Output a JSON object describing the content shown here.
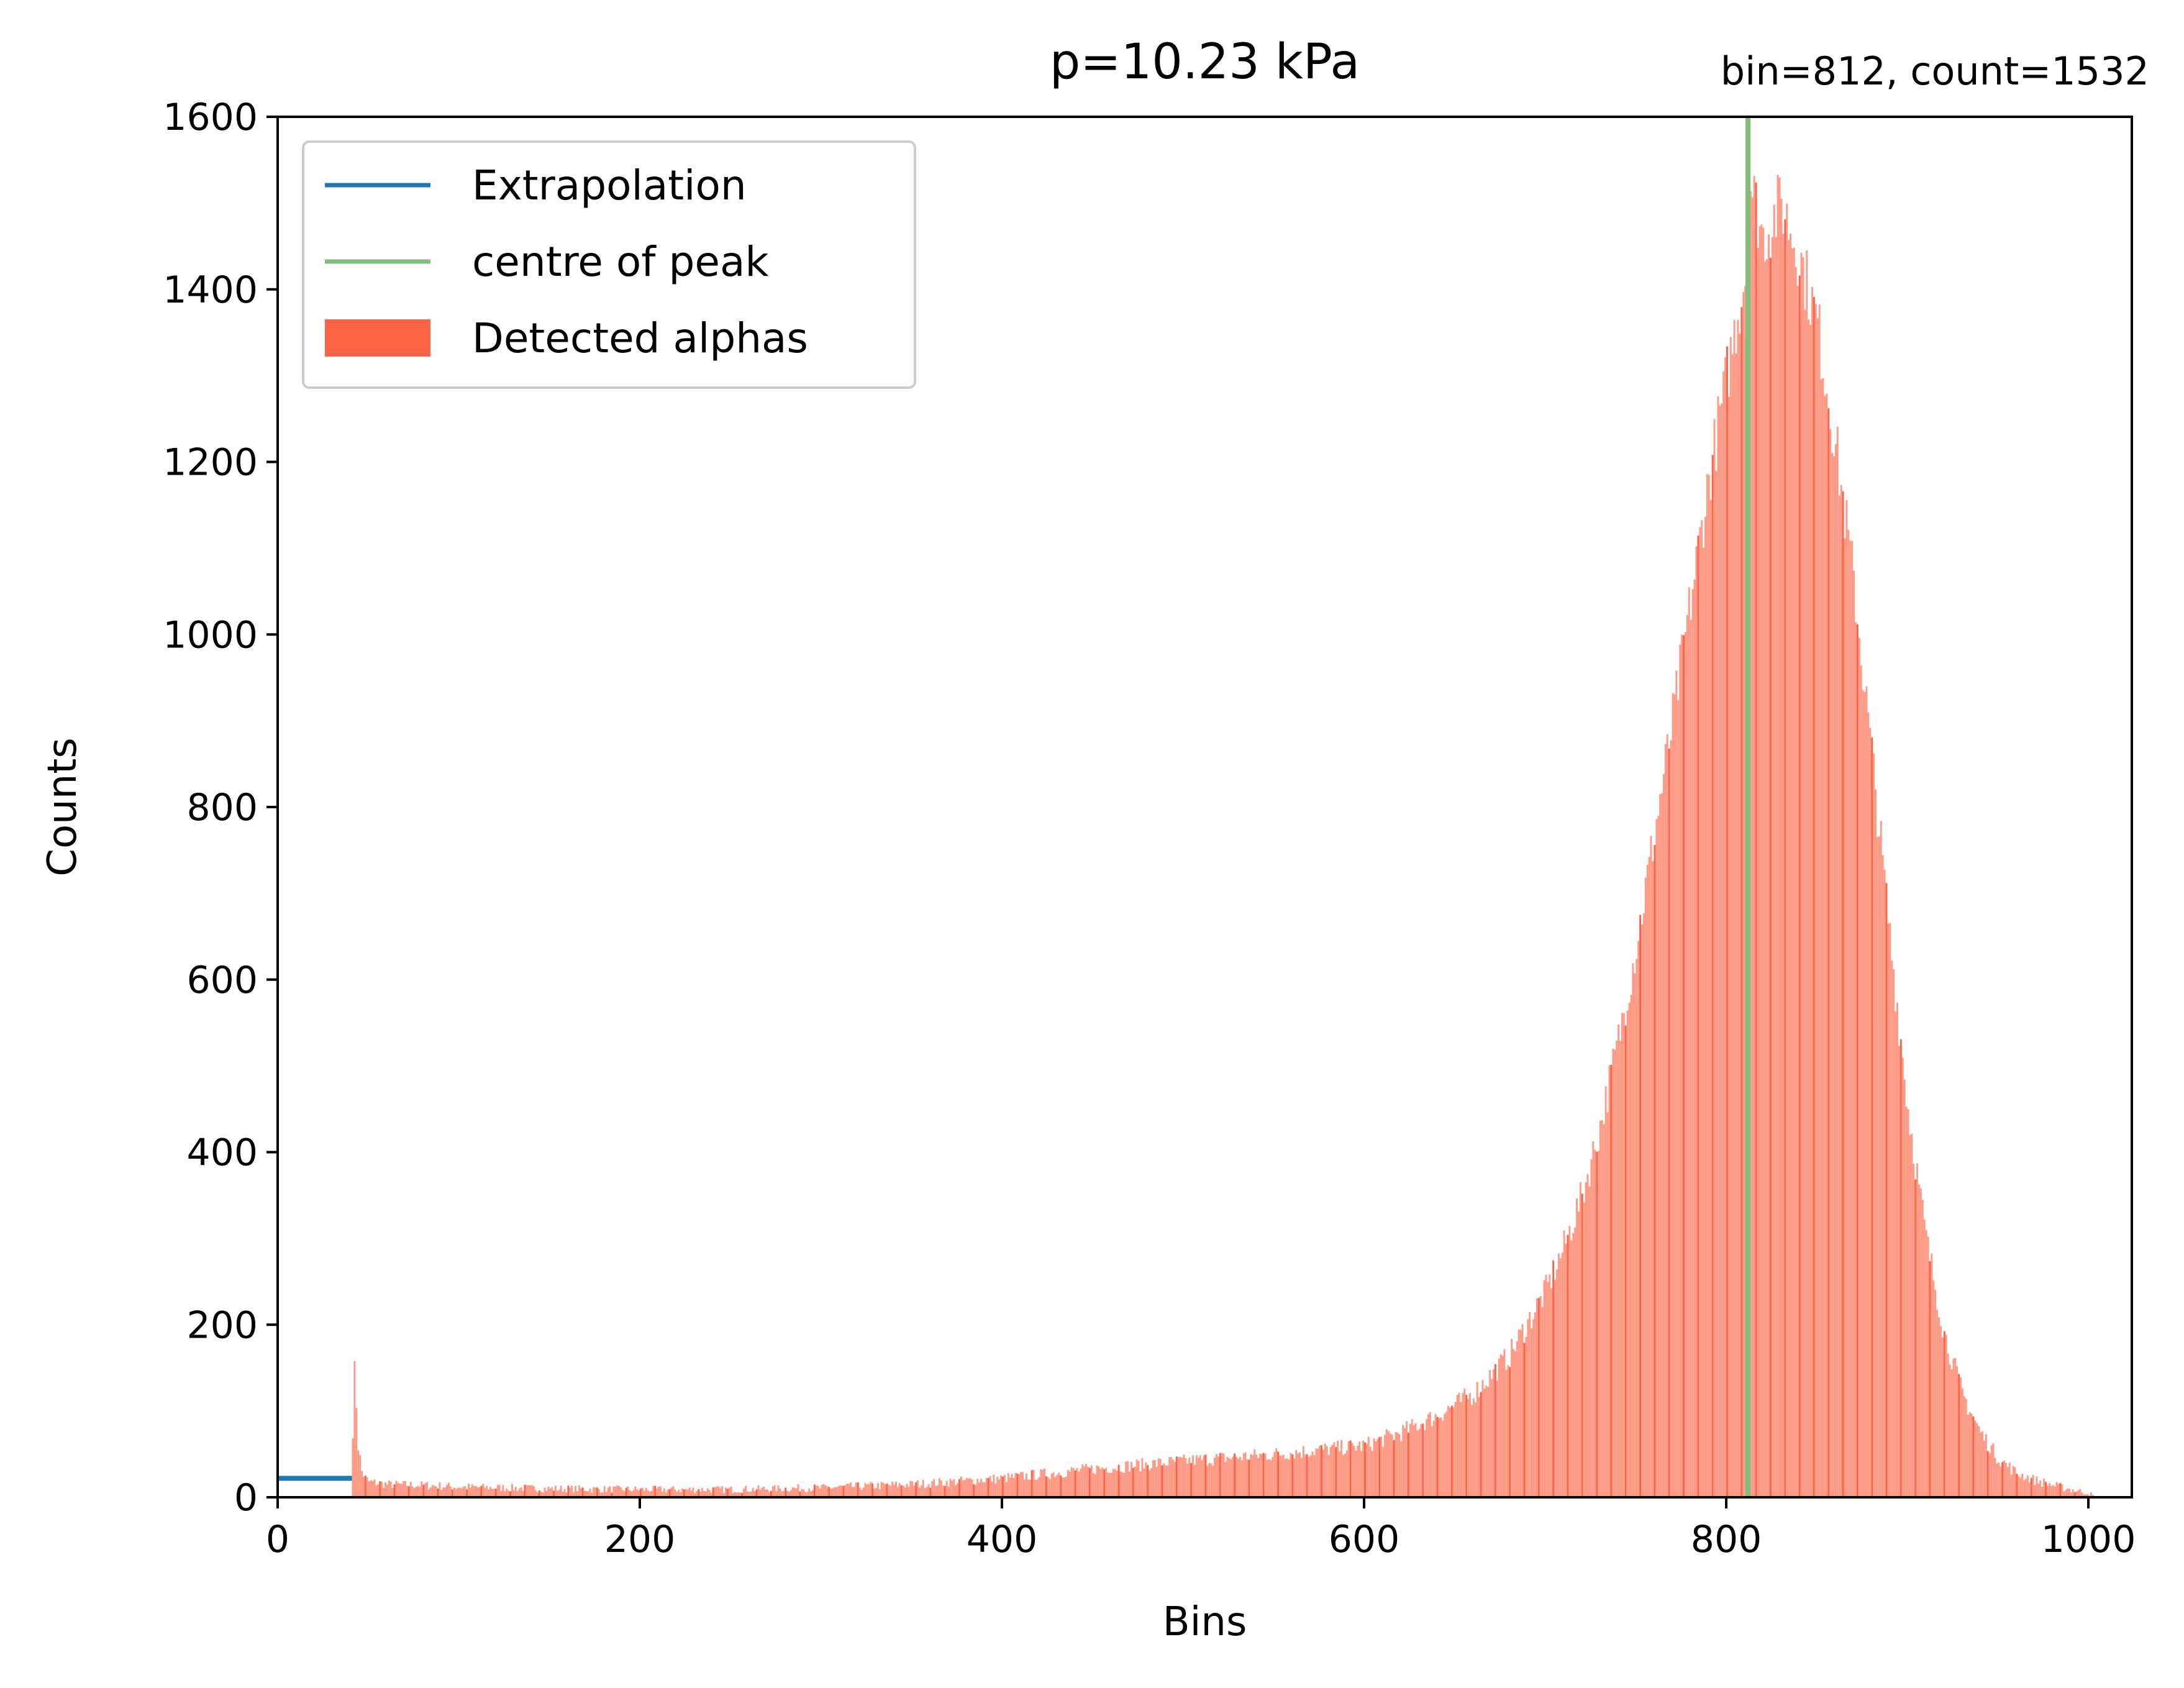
{
  "chart_data": {
    "type": "bar",
    "title": "p=10.23 kPa",
    "annotation": "bin=812, count=1532",
    "xlabel": "Bins",
    "ylabel": "Counts",
    "xlim": [
      0,
      1024
    ],
    "ylim": [
      0,
      1600
    ],
    "xticks": [
      "0",
      "200",
      "400",
      "600",
      "800",
      "1000"
    ],
    "yticks": [
      "0",
      "200",
      "400",
      "600",
      "800",
      "1000",
      "1200",
      "1400",
      "1600"
    ],
    "grid": false,
    "legend": {
      "position": "top-left",
      "items": [
        {
          "label": "Extrapolation",
          "type": "line",
          "color": "#1f77b4"
        },
        {
          "label": "centre of peak",
          "type": "line",
          "color": "#7fbf7b"
        },
        {
          "label": "Detected alphas",
          "type": "bar",
          "color": "#ff6347"
        }
      ]
    },
    "colors": {
      "bars_light": "#ff9a86",
      "bars_dark": "#ff6347",
      "extrapolation": "#1f77b4",
      "peak_line": "#7fbf7b"
    },
    "peak": {
      "bin": 812,
      "count": 1532
    },
    "extrapolation": {
      "x": [
        0,
        41
      ],
      "y": [
        22,
        22
      ]
    },
    "bins_start": 41,
    "bins_end": 1003,
    "series": [
      {
        "name": "Detected alphas",
        "x": [
          40,
          42,
          44,
          46,
          48,
          50,
          60,
          80,
          100,
          150,
          200,
          250,
          300,
          350,
          400,
          450,
          500,
          550,
          600,
          620,
          640,
          660,
          680,
          700,
          710,
          720,
          730,
          740,
          750,
          760,
          770,
          780,
          790,
          800,
          810,
          812,
          820,
          830,
          840,
          850,
          860,
          870,
          880,
          890,
          900,
          910,
          920,
          930,
          940,
          950,
          960,
          970,
          980,
          990,
          1000,
          1003
        ],
        "values": [
          0,
          158,
          60,
          30,
          22,
          18,
          15,
          14,
          12,
          10,
          9,
          9,
          11,
          15,
          22,
          33,
          42,
          50,
          60,
          75,
          95,
          120,
          165,
          240,
          290,
          350,
          430,
          530,
          640,
          770,
          900,
          1040,
          1180,
          1300,
          1420,
          1532,
          1460,
          1500,
          1440,
          1360,
          1220,
          1060,
          860,
          650,
          450,
          300,
          190,
          120,
          75,
          45,
          28,
          20,
          14,
          9,
          5,
          0
        ]
      }
    ]
  }
}
